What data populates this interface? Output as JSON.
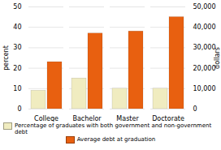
{
  "chart_data": {
    "type": "bar",
    "categories": [
      "College",
      "Bachelor",
      "Master",
      "Doctorate"
    ],
    "series": [
      {
        "name": "Percentage of graduates with both government and non-government debt",
        "color": "#f0ecc0",
        "values": [
          9,
          15,
          10,
          10
        ]
      },
      {
        "name": "Average debt at graduation",
        "color": "#e86010",
        "values": [
          23000,
          37000,
          38000,
          45000
        ],
        "axis": "y2"
      }
    ],
    "ylabel": "percent",
    "y2label": "dollars",
    "ylim": [
      0,
      50
    ],
    "yticks": [
      0,
      10,
      20,
      30,
      40,
      50
    ],
    "y2lim": [
      0,
      50000
    ],
    "y2ticks": [
      0,
      {
        "value": 10000,
        "label": "10,000"
      },
      {
        "value": 20000,
        "label": "20,000"
      },
      {
        "value": 30000,
        "label": "30,000"
      },
      {
        "value": 40000,
        "label": "40,000"
      },
      {
        "value": 50000,
        "label": "50,000"
      }
    ],
    "grid": true,
    "legend": "bottom"
  }
}
